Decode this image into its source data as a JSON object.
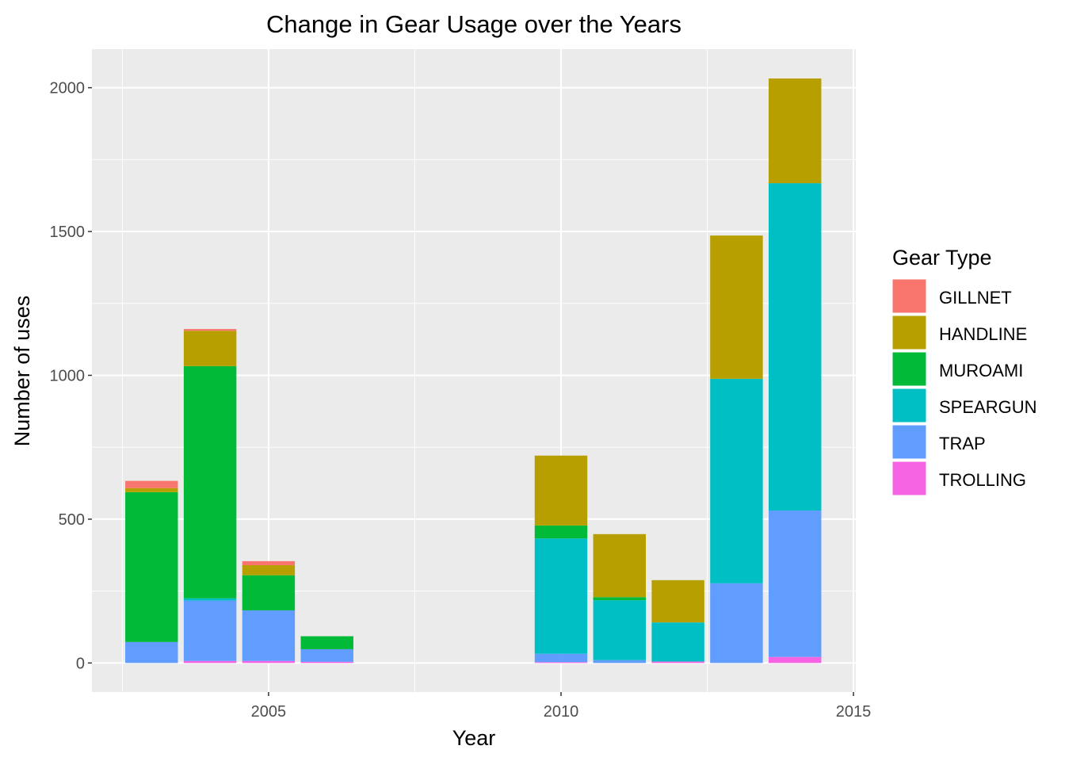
{
  "chart_data": {
    "type": "bar",
    "stacked": true,
    "title": "Change in Gear Usage over the Years",
    "xlabel": "Year",
    "ylabel": "Number of uses",
    "xlim": [
      2001.98,
      2015.04
    ],
    "ylim": [
      -101,
      2134
    ],
    "x_ticks": [
      2005,
      2010,
      2015
    ],
    "y_ticks": [
      0,
      500,
      1000,
      1500,
      2000
    ],
    "grid": true,
    "legend": {
      "title": "Gear Type",
      "placement": "right"
    },
    "categories": [
      2003,
      2004,
      2005,
      2006,
      2010,
      2011,
      2012,
      2013,
      2014
    ],
    "series": [
      {
        "name": "GILLNET",
        "color": "#F8766D",
        "values": [
          25,
          6,
          14,
          0,
          0,
          0,
          0,
          0,
          0
        ]
      },
      {
        "name": "HANDLINE",
        "color": "#B79F00",
        "values": [
          14,
          123,
          35,
          0,
          243,
          219,
          147,
          498,
          364
        ]
      },
      {
        "name": "MUROAMI",
        "color": "#00BA38",
        "values": [
          521,
          807,
          122,
          45,
          45,
          11,
          0,
          0,
          0
        ]
      },
      {
        "name": "SPEARGUN",
        "color": "#00BFC4",
        "values": [
          0,
          8,
          0,
          0,
          401,
          208,
          136,
          711,
          1138
        ]
      },
      {
        "name": "TRAP",
        "color": "#619CFF",
        "values": [
          73,
          210,
          176,
          44,
          29,
          10,
          0,
          277,
          509
        ]
      },
      {
        "name": "TROLLING",
        "color": "#F564E3",
        "values": [
          0,
          7,
          7,
          4,
          3,
          0,
          5,
          0,
          21
        ]
      }
    ]
  }
}
